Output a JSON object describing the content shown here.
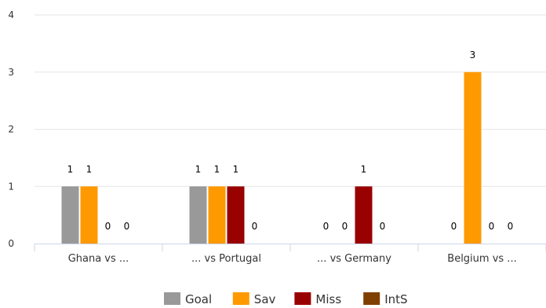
{
  "chart_data": {
    "type": "bar",
    "categories": [
      "Ghana vs ...",
      "... vs Portugal",
      "... vs Germany",
      "Belgium vs ..."
    ],
    "series": [
      {
        "name": "Goal",
        "color": "#999999",
        "values": [
          1,
          1,
          0,
          0
        ]
      },
      {
        "name": "Sav",
        "color": "#ff9900",
        "values": [
          1,
          1,
          0,
          3
        ]
      },
      {
        "name": "Miss",
        "color": "#990000",
        "values": [
          0,
          1,
          1,
          0
        ]
      },
      {
        "name": "IntS",
        "color": "#7f3f00",
        "values": [
          0,
          0,
          0,
          0
        ]
      }
    ],
    "y_ticks": [
      "0",
      "1",
      "2",
      "3",
      "4"
    ],
    "ylim": [
      0,
      4
    ],
    "grid": true,
    "legend_position": "bottom-center",
    "data_labels": true
  }
}
